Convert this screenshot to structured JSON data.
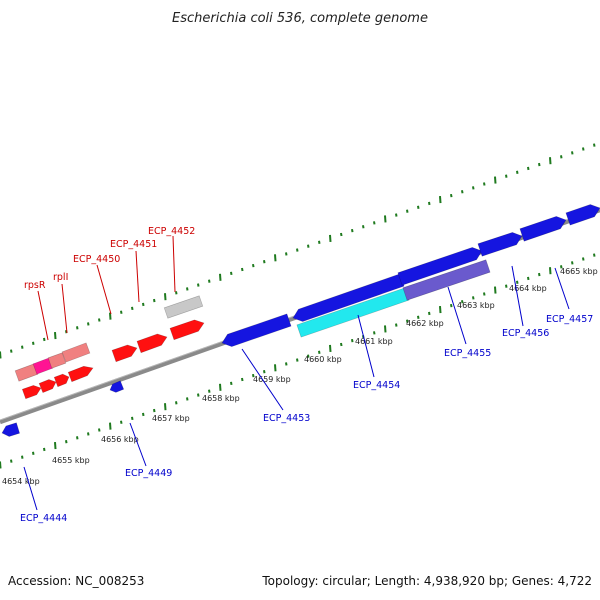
{
  "title": "Escherichia coli 536, complete genome",
  "footer": {
    "accession": "Accession: NC_008253",
    "topology": "Topology: circular; Length: 4,938,920 bp; Genes: 4,722"
  },
  "colors": {
    "backbone": "#8a8a8a",
    "tick": "#1f7a1f",
    "forward_label": "#cc0000",
    "reverse_label": "#0000cc",
    "gene_red": "#ff1010",
    "gene_pink": "#f08080",
    "gene_magenta": "#ff1493",
    "gene_grey": "#c8c8c8",
    "gene_blue": "#1515e0",
    "gene_cyan": "#22e8ee",
    "gene_slate": "#6a5acd"
  },
  "scale": {
    "kbp_labels": [
      "4654 kbp",
      "4655 kbp",
      "4656 kbp",
      "4657 kbp",
      "4658 kbp",
      "4659 kbp",
      "4660 kbp",
      "4661 kbp",
      "4662 kbp",
      "4663 kbp",
      "4664 kbp",
      "4665 kbp"
    ]
  },
  "gene_labels": {
    "forward": [
      "rpsR",
      "rplI",
      "ECP_4450",
      "ECP_4451",
      "ECP_4452"
    ],
    "reverse": [
      "ECP_4444",
      "ECP_4449",
      "ECP_4453",
      "ECP_4454",
      "ECP_4455",
      "ECP_4456",
      "ECP_4457"
    ]
  }
}
